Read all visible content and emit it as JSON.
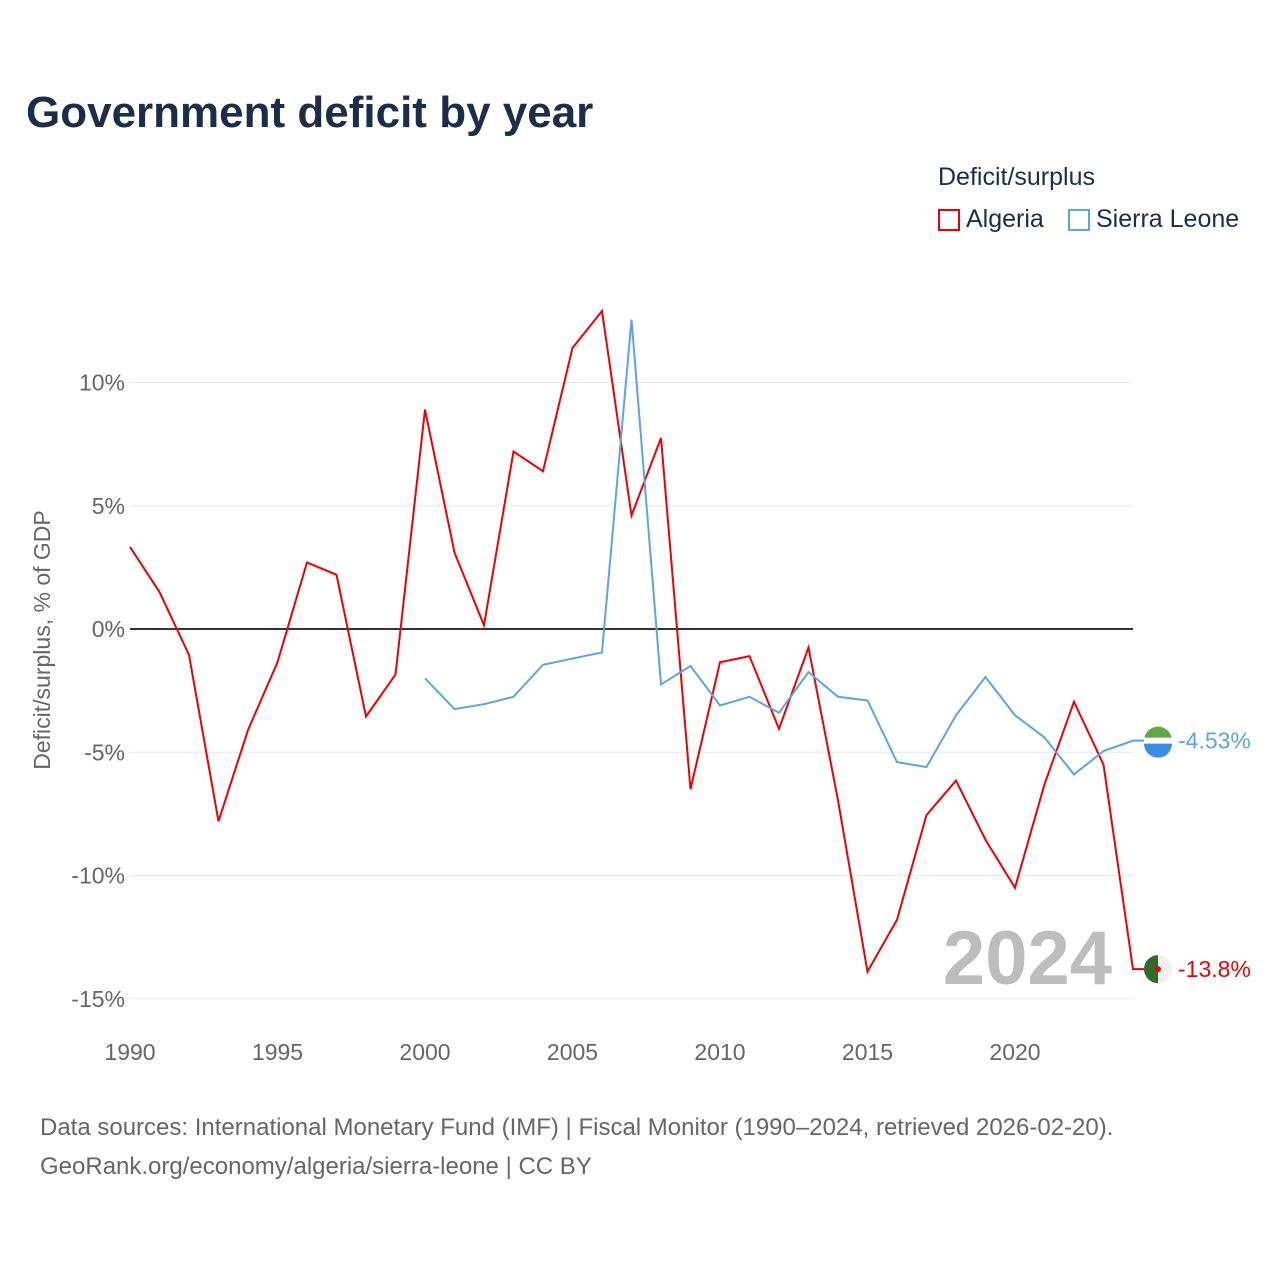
{
  "title": "Government deficit by year",
  "legend": {
    "title": "Deficit/surplus",
    "items": [
      {
        "name": "Algeria",
        "color": "#ee0000"
      },
      {
        "name": "Sierra Leone",
        "color": "#5aa4e8"
      }
    ]
  },
  "source_line1": "Data sources: International Monetary Fund (IMF) | Fiscal Monitor (1990–2024, retrieved 2026-02-20).",
  "source_line2": "GeoRank.org/economy/algeria/sierra-leone | CC BY",
  "chart_data": {
    "type": "line",
    "title": "Government deficit by year",
    "xlabel": "",
    "ylabel": "Deficit/surplus, % of GDP",
    "xlim": [
      1990,
      2024
    ],
    "ylim": [
      -15,
      13
    ],
    "xticks": [
      1990,
      1995,
      2000,
      2005,
      2010,
      2015,
      2020
    ],
    "xtick_labels": [
      "1990",
      "1995",
      "2000",
      "2005",
      "2010",
      "2015",
      "2020"
    ],
    "yticks": [
      10,
      5,
      0,
      -5,
      -10,
      -15
    ],
    "ytick_labels": [
      "10%",
      "5%",
      "0%",
      "-5%",
      "-10%",
      "-15%"
    ],
    "year_watermark": "2024",
    "series": [
      {
        "name": "Algeria",
        "color": "#ee0000",
        "end_label": "-13.8%",
        "x": [
          1990,
          1991,
          1992,
          1993,
          1994,
          1995,
          1996,
          1997,
          1998,
          1999,
          2000,
          2001,
          2002,
          2003,
          2004,
          2005,
          2006,
          2007,
          2008,
          2009,
          2010,
          2011,
          2012,
          2013,
          2014,
          2015,
          2016,
          2017,
          2018,
          2019,
          2020,
          2021,
          2022,
          2023,
          2024
        ],
        "values": [
          3.33,
          1.5,
          -1.05,
          -7.8,
          -4.1,
          -1.35,
          2.7,
          2.2,
          -3.55,
          -1.85,
          8.9,
          3.1,
          0.15,
          7.2,
          6.4,
          11.4,
          12.9,
          4.6,
          7.75,
          -6.5,
          -1.35,
          -1.1,
          -4.05,
          -0.75,
          -6.95,
          -13.9,
          -11.8,
          -7.55,
          -6.15,
          -8.55,
          -10.5,
          -6.3,
          -2.95,
          -5.5,
          -13.8
        ]
      },
      {
        "name": "Sierra Leone",
        "color": "#5aa4e8",
        "end_label": "-4.53%",
        "x": [
          2000,
          2001,
          2002,
          2003,
          2004,
          2005,
          2006,
          2007,
          2008,
          2009,
          2010,
          2011,
          2012,
          2013,
          2014,
          2015,
          2016,
          2017,
          2018,
          2019,
          2020,
          2021,
          2022,
          2023,
          2024
        ],
        "values": [
          -2.0,
          -3.25,
          -3.05,
          -2.75,
          -1.45,
          -1.2,
          -0.95,
          12.55,
          -2.25,
          -1.5,
          -3.1,
          -2.75,
          -3.4,
          -1.75,
          -2.75,
          -2.9,
          -5.4,
          -5.6,
          -3.5,
          -1.95,
          -3.5,
          -4.4,
          -5.9,
          -4.95,
          -4.53
        ]
      }
    ]
  }
}
